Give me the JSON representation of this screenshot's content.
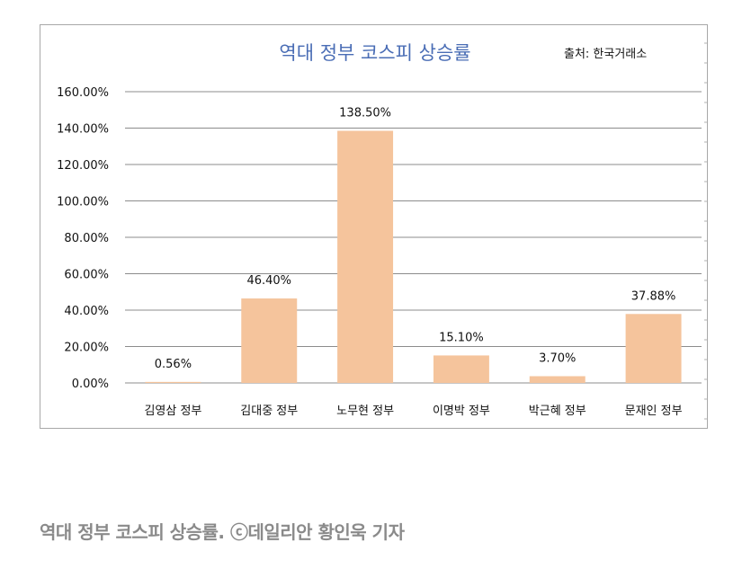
{
  "chart_data": {
    "type": "bar",
    "title": "역대 정부 코스피 상승률",
    "source_note": "출처: 한국거래소",
    "categories": [
      "김영삼 정부",
      "김대중 정부",
      "노무현 정부",
      "이명박 정부",
      "박근혜 정부",
      "문재인 정부"
    ],
    "values": [
      0.56,
      46.4,
      138.5,
      15.1,
      3.7,
      37.88
    ],
    "value_labels": [
      "0.56%",
      "46.40%",
      "138.50%",
      "15.10%",
      "3.70%",
      "37.88%"
    ],
    "ylim": [
      0,
      160
    ],
    "yticks": [
      0,
      20,
      40,
      60,
      80,
      100,
      120,
      140,
      160
    ],
    "ytick_labels": [
      "0.00%",
      "20.00%",
      "40.00%",
      "60.00%",
      "80.00%",
      "100.00%",
      "120.00%",
      "140.00%",
      "160.00%"
    ],
    "grid": true,
    "bar_color": "#f5c49c",
    "title_color": "#4a6db5"
  },
  "caption": "역대 정부 코스피 상승률. ⓒ데일리안 황인욱 기자"
}
